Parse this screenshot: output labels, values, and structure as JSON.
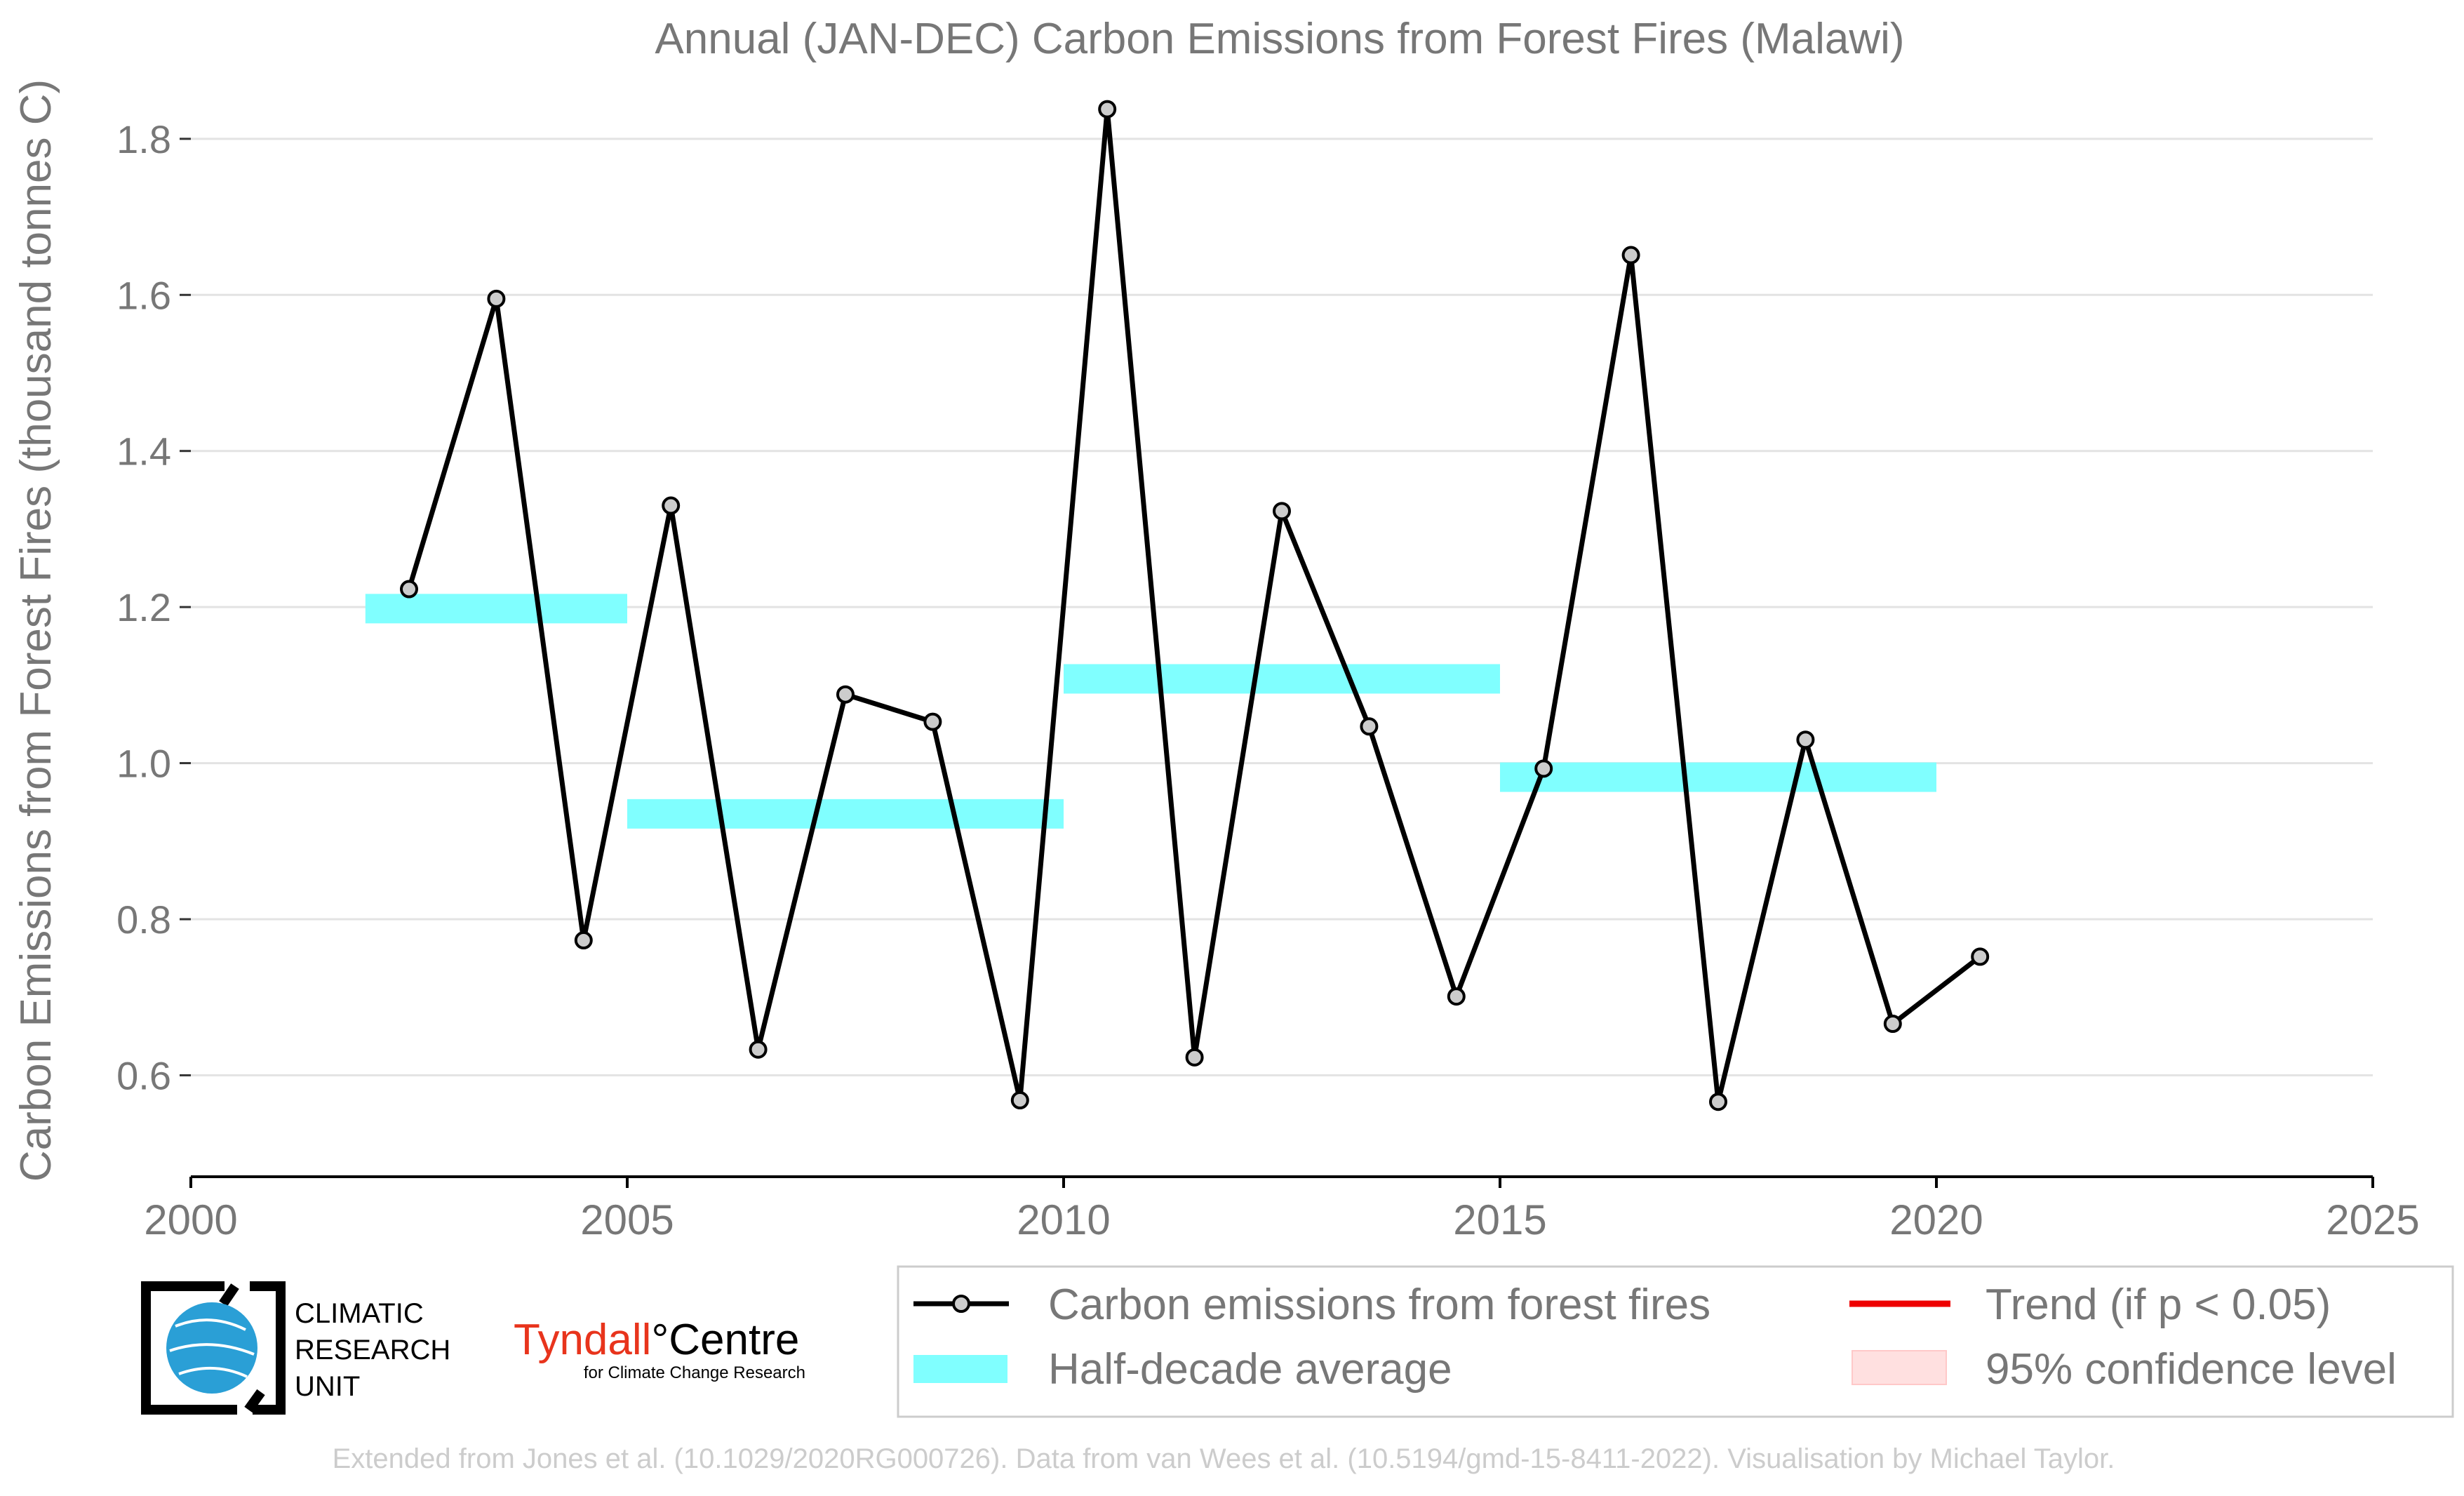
{
  "chart_data": {
    "type": "line",
    "title": "Annual (JAN-DEC) Carbon Emissions from Forest Fires (Malawi)",
    "ylabel": "Carbon Emissions from Forest Fires (thousand tonnes C)",
    "xlabel": "",
    "xlim": [
      2000,
      2025
    ],
    "ylim": [
      0.47,
      1.87
    ],
    "x_ticks": [
      2000,
      2005,
      2010,
      2015,
      2020,
      2025
    ],
    "y_ticks": [
      0.6,
      0.8,
      1.0,
      1.2,
      1.4,
      1.6,
      1.8
    ],
    "y_tick_labels": [
      "0.6",
      "0.8",
      "1.0",
      "1.2",
      "1.4",
      "1.6",
      "1.8"
    ],
    "grid": "horizontal",
    "series": [
      {
        "name": "Carbon emissions from forest fires",
        "color": "#000000",
        "marker_color": "#cccccc",
        "x": [
          2002.5,
          2003.5,
          2004.5,
          2005.5,
          2006.5,
          2007.5,
          2008.5,
          2009.5,
          2010.5,
          2011.5,
          2012.5,
          2013.5,
          2014.5,
          2015.5,
          2016.5,
          2017.5,
          2018.5,
          2019.5,
          2020.5
        ],
        "y": [
          1.223,
          1.595,
          0.773,
          1.33,
          0.633,
          1.088,
          1.053,
          0.568,
          1.838,
          0.623,
          1.323,
          1.047,
          0.701,
          0.993,
          1.651,
          0.566,
          1.03,
          0.666,
          0.752
        ]
      }
    ],
    "half_decade_average": {
      "name": "Half-decade average",
      "color": "#80ffff",
      "segments": [
        {
          "x0": 2002,
          "x1": 2005,
          "y": 1.198
        },
        {
          "x0": 2005,
          "x1": 2010,
          "y": 0.935
        },
        {
          "x0": 2010,
          "x1": 2015,
          "y": 1.108
        },
        {
          "x0": 2015,
          "x1": 2020,
          "y": 0.982
        }
      ]
    },
    "legend": {
      "placement": "bottom-right",
      "entries": [
        {
          "label": "Carbon emissions from forest fires",
          "color": "#000000"
        },
        {
          "label": "Half-decade average",
          "color": "#80ffff"
        },
        {
          "label": "Trend (if p < 0.05)",
          "color": "#ee0000"
        },
        {
          "label": "95% confidence level",
          "color": "#ffe0e0"
        }
      ]
    }
  },
  "logos": {
    "cru_lines": [
      "CLIMATIC",
      "RESEARCH",
      "UNIT"
    ],
    "tyndall_red": "Tyndall",
    "tyndall_degree": "°",
    "tyndall_black": "Centre",
    "tyndall_sub": "for Climate Change Research",
    "tyndall_color": "#e8341c",
    "cru_globe_color": "#2a9fd6"
  },
  "footer": "Extended from Jones et al. (10.1029/2020RG000726). Data from van Wees et al. (10.5194/gmd-15-8411-2022). Visualisation by Michael Taylor."
}
